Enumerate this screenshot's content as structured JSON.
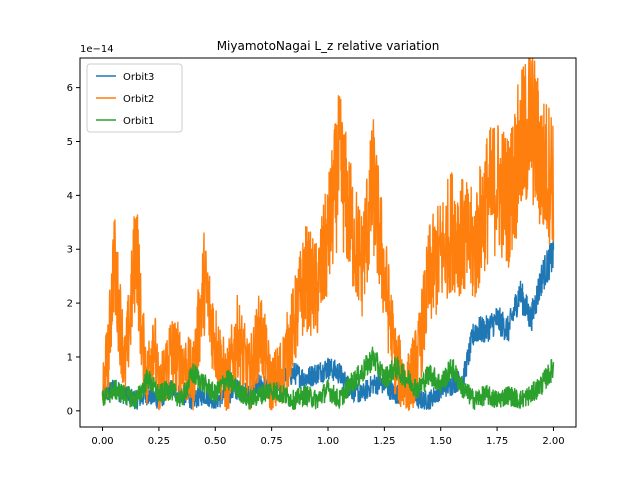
{
  "chart_data": {
    "type": "line",
    "title": "MiyamotoNagai L_z relative variation",
    "xlabel": "",
    "ylabel": "",
    "y_offset_label": "1e−14",
    "xlim": [
      -0.1,
      2.1
    ],
    "ylim": [
      -0.3,
      6.55
    ],
    "y_scale_note": "values in units of 1e-14",
    "x_ticks": [
      0.0,
      0.25,
      0.5,
      0.75,
      1.0,
      1.25,
      1.5,
      1.75,
      2.0
    ],
    "x_tick_labels": [
      "0.00",
      "0.25",
      "0.50",
      "0.75",
      "1.00",
      "1.25",
      "1.50",
      "1.75",
      "2.00"
    ],
    "y_ticks": [
      0,
      1,
      2,
      3,
      4,
      5,
      6
    ],
    "y_tick_labels": [
      "0",
      "1",
      "2",
      "3",
      "4",
      "5",
      "6"
    ],
    "grid": false,
    "legend_position": "top-left",
    "series": [
      {
        "name": "Orbit3",
        "color": "#1f77b4",
        "x": [
          0.0,
          0.05,
          0.1,
          0.15,
          0.2,
          0.25,
          0.3,
          0.35,
          0.4,
          0.45,
          0.5,
          0.55,
          0.6,
          0.65,
          0.7,
          0.75,
          0.8,
          0.85,
          0.9,
          0.95,
          1.0,
          1.05,
          1.1,
          1.15,
          1.2,
          1.25,
          1.3,
          1.35,
          1.4,
          1.45,
          1.5,
          1.55,
          1.6,
          1.65,
          1.7,
          1.75,
          1.8,
          1.85,
          1.9,
          1.95,
          2.0
        ],
        "values": [
          0.3,
          0.4,
          0.3,
          0.2,
          0.3,
          0.2,
          0.4,
          0.3,
          0.2,
          0.3,
          0.2,
          0.3,
          0.4,
          0.3,
          0.5,
          0.4,
          0.6,
          0.7,
          0.6,
          0.7,
          0.8,
          0.7,
          0.4,
          0.3,
          0.5,
          0.5,
          0.3,
          0.4,
          0.2,
          0.2,
          0.4,
          0.5,
          0.6,
          1.5,
          1.5,
          1.7,
          1.5,
          2.2,
          1.7,
          2.5,
          2.9
        ]
      },
      {
        "name": "Orbit2",
        "color": "#ff7f0e",
        "x": [
          0.0,
          0.025,
          0.05,
          0.075,
          0.1,
          0.125,
          0.15,
          0.175,
          0.2,
          0.225,
          0.25,
          0.3,
          0.35,
          0.4,
          0.45,
          0.5,
          0.55,
          0.6,
          0.65,
          0.7,
          0.75,
          0.8,
          0.85,
          0.9,
          0.95,
          1.0,
          1.05,
          1.1,
          1.15,
          1.2,
          1.25,
          1.3,
          1.35,
          1.4,
          1.45,
          1.5,
          1.55,
          1.6,
          1.65,
          1.7,
          1.75,
          1.8,
          1.85,
          1.9,
          1.95,
          2.0
        ],
        "values": [
          0.4,
          1.0,
          2.8,
          1.8,
          0.8,
          1.9,
          3.2,
          1.3,
          0.6,
          1.5,
          0.3,
          1.1,
          0.9,
          0.6,
          2.4,
          1.3,
          0.5,
          1.4,
          0.6,
          1.5,
          0.4,
          0.8,
          1.6,
          2.5,
          2.2,
          3.2,
          4.6,
          3.5,
          2.7,
          4.2,
          2.5,
          0.9,
          0.4,
          1.0,
          2.5,
          2.9,
          3.4,
          3.2,
          3.0,
          3.9,
          4.2,
          3.9,
          4.8,
          5.4,
          4.5,
          4.4
        ]
      },
      {
        "name": "Orbit1",
        "color": "#2ca02c",
        "x": [
          0.0,
          0.05,
          0.1,
          0.15,
          0.2,
          0.25,
          0.3,
          0.35,
          0.4,
          0.45,
          0.5,
          0.55,
          0.6,
          0.65,
          0.7,
          0.75,
          0.8,
          0.85,
          0.9,
          0.95,
          1.0,
          1.05,
          1.1,
          1.15,
          1.2,
          1.25,
          1.3,
          1.35,
          1.4,
          1.45,
          1.5,
          1.55,
          1.6,
          1.65,
          1.7,
          1.75,
          1.8,
          1.85,
          1.9,
          1.95,
          2.0
        ],
        "values": [
          0.2,
          0.4,
          0.3,
          0.2,
          0.6,
          0.3,
          0.4,
          0.2,
          0.7,
          0.5,
          0.3,
          0.6,
          0.4,
          0.2,
          0.3,
          0.4,
          0.3,
          0.2,
          0.3,
          0.2,
          0.4,
          0.2,
          0.5,
          0.7,
          1.0,
          0.6,
          0.8,
          0.6,
          0.4,
          0.7,
          0.5,
          0.8,
          0.4,
          0.2,
          0.3,
          0.2,
          0.3,
          0.2,
          0.3,
          0.5,
          0.8
        ]
      }
    ]
  }
}
